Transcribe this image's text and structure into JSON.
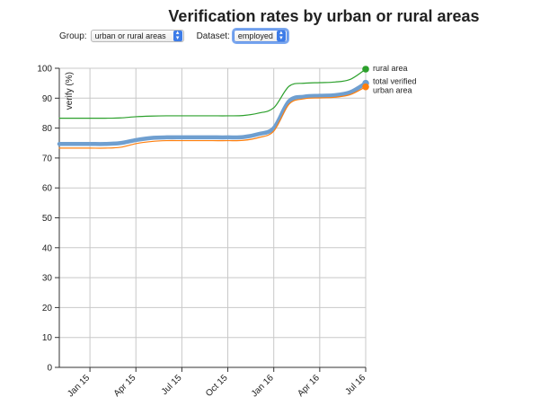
{
  "title": "Verification rates by urban or rural areas",
  "controls": {
    "group_label": "Group:",
    "group_value": "urban or rural areas",
    "dataset_label": "Dataset:",
    "dataset_value": "employed"
  },
  "chart_data": {
    "type": "line",
    "ylabel": "verify (%)",
    "xlabel": "",
    "ylim": [
      0,
      100
    ],
    "y_ticks": [
      0,
      10,
      20,
      30,
      40,
      50,
      60,
      70,
      80,
      90,
      100
    ],
    "x_ticks": [
      "Jan 15",
      "Apr 15",
      "Jul 15",
      "Oct 15",
      "Jan 16",
      "Apr 16",
      "Jul 16"
    ],
    "x_range": [
      "Nov 14",
      "Jul 16"
    ],
    "grid": true,
    "legend": "end-of-line labels",
    "series": [
      {
        "name": "rural area",
        "color": "#2ca02c",
        "points": [
          [
            "Nov 14",
            83.3
          ],
          [
            "Dec 14",
            83.3
          ],
          [
            "Jan 15",
            83.3
          ],
          [
            "Feb 15",
            83.3
          ],
          [
            "Mar 15",
            83.4
          ],
          [
            "Apr 15",
            83.8
          ],
          [
            "May 15",
            84.0
          ],
          [
            "Jun 15",
            84.1
          ],
          [
            "Jul 15",
            84.1
          ],
          [
            "Aug 15",
            84.1
          ],
          [
            "Sep 15",
            84.1
          ],
          [
            "Oct 15",
            84.1
          ],
          [
            "Nov 15",
            84.2
          ],
          [
            "Dec 15",
            85.0
          ],
          [
            "Jan 16",
            86.8
          ],
          [
            "Feb 16",
            94.0
          ],
          [
            "Mar 16",
            95.0
          ],
          [
            "Apr 16",
            95.2
          ],
          [
            "May 16",
            95.4
          ],
          [
            "Jun 16",
            96.3
          ],
          [
            "Jul 16",
            99.7
          ]
        ]
      },
      {
        "name": "total verified",
        "color": "#6f9fd0",
        "points": [
          [
            "Nov 14",
            74.7
          ],
          [
            "Dec 14",
            74.7
          ],
          [
            "Jan 15",
            74.7
          ],
          [
            "Feb 15",
            74.7
          ],
          [
            "Mar 15",
            75.0
          ],
          [
            "Apr 15",
            76.0
          ],
          [
            "May 15",
            76.7
          ],
          [
            "Jun 15",
            76.9
          ],
          [
            "Jul 15",
            76.9
          ],
          [
            "Aug 15",
            76.9
          ],
          [
            "Sep 15",
            76.9
          ],
          [
            "Oct 15",
            76.9
          ],
          [
            "Nov 15",
            77.0
          ],
          [
            "Dec 15",
            78.0
          ],
          [
            "Jan 16",
            80.0
          ],
          [
            "Feb 16",
            89.0
          ],
          [
            "Mar 16",
            90.5
          ],
          [
            "Apr 16",
            90.8
          ],
          [
            "May 16",
            91.0
          ],
          [
            "Jun 16",
            92.0
          ],
          [
            "Jul 16",
            95.0
          ]
        ]
      },
      {
        "name": "urban area",
        "color": "#ff7f0e",
        "points": [
          [
            "Nov 14",
            73.3
          ],
          [
            "Dec 14",
            73.3
          ],
          [
            "Jan 15",
            73.3
          ],
          [
            "Feb 15",
            73.3
          ],
          [
            "Mar 15",
            73.6
          ],
          [
            "Apr 15",
            74.8
          ],
          [
            "May 15",
            75.5
          ],
          [
            "Jun 15",
            75.8
          ],
          [
            "Jul 15",
            75.8
          ],
          [
            "Aug 15",
            75.8
          ],
          [
            "Sep 15",
            75.8
          ],
          [
            "Oct 15",
            75.8
          ],
          [
            "Nov 15",
            75.9
          ],
          [
            "Dec 15",
            76.8
          ],
          [
            "Jan 16",
            79.0
          ],
          [
            "Feb 16",
            88.0
          ],
          [
            "Mar 16",
            89.8
          ],
          [
            "Apr 16",
            90.1
          ],
          [
            "May 16",
            90.3
          ],
          [
            "Jun 16",
            91.2
          ],
          [
            "Jul 16",
            93.8
          ]
        ]
      }
    ]
  }
}
